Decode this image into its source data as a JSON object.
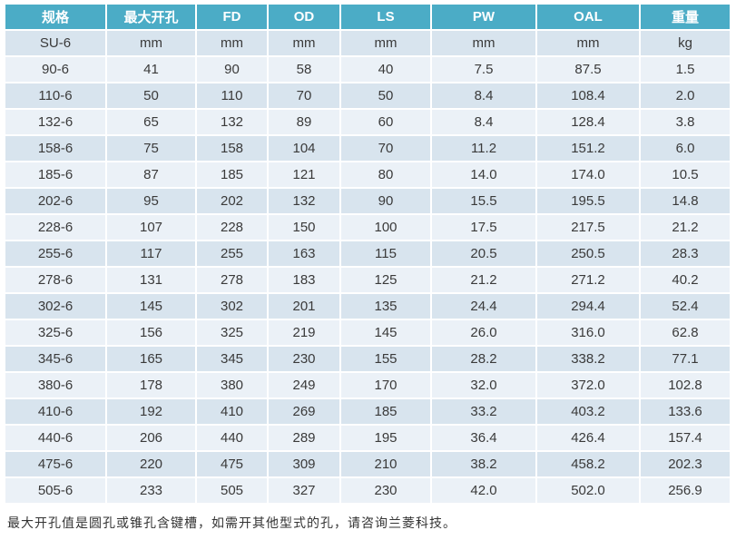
{
  "table": {
    "columns": [
      "规格",
      "最大开孔",
      "FD",
      "OD",
      "LS",
      "PW",
      "OAL",
      "重量"
    ],
    "units_row": [
      "SU-6",
      "mm",
      "mm",
      "mm",
      "mm",
      "mm",
      "mm",
      "kg"
    ],
    "rows": [
      [
        "90-6",
        "41",
        "90",
        "58",
        "40",
        "7.5",
        "87.5",
        "1.5"
      ],
      [
        "110-6",
        "50",
        "110",
        "70",
        "50",
        "8.4",
        "108.4",
        "2.0"
      ],
      [
        "132-6",
        "65",
        "132",
        "89",
        "60",
        "8.4",
        "128.4",
        "3.8"
      ],
      [
        "158-6",
        "75",
        "158",
        "104",
        "70",
        "11.2",
        "151.2",
        "6.0"
      ],
      [
        "185-6",
        "87",
        "185",
        "121",
        "80",
        "14.0",
        "174.0",
        "10.5"
      ],
      [
        "202-6",
        "95",
        "202",
        "132",
        "90",
        "15.5",
        "195.5",
        "14.8"
      ],
      [
        "228-6",
        "107",
        "228",
        "150",
        "100",
        "17.5",
        "217.5",
        "21.2"
      ],
      [
        "255-6",
        "117",
        "255",
        "163",
        "115",
        "20.5",
        "250.5",
        "28.3"
      ],
      [
        "278-6",
        "131",
        "278",
        "183",
        "125",
        "21.2",
        "271.2",
        "40.2"
      ],
      [
        "302-6",
        "145",
        "302",
        "201",
        "135",
        "24.4",
        "294.4",
        "52.4"
      ],
      [
        "325-6",
        "156",
        "325",
        "219",
        "145",
        "26.0",
        "316.0",
        "62.8"
      ],
      [
        "345-6",
        "165",
        "345",
        "230",
        "155",
        "28.2",
        "338.2",
        "77.1"
      ],
      [
        "380-6",
        "178",
        "380",
        "249",
        "170",
        "32.0",
        "372.0",
        "102.8"
      ],
      [
        "410-6",
        "192",
        "410",
        "269",
        "185",
        "33.2",
        "403.2",
        "133.6"
      ],
      [
        "440-6",
        "206",
        "440",
        "289",
        "195",
        "36.4",
        "426.4",
        "157.4"
      ],
      [
        "475-6",
        "220",
        "475",
        "309",
        "210",
        "38.2",
        "458.2",
        "202.3"
      ],
      [
        "505-6",
        "233",
        "505",
        "327",
        "230",
        "42.0",
        "502.0",
        "256.9"
      ]
    ]
  },
  "footer": {
    "note": "最大开孔值是圆孔或锥孔含键槽，如需开其他型式的孔，请咨询兰菱科技。"
  },
  "colors": {
    "header_bg": "#4BACC6",
    "band_dark": "#D8E4EE",
    "band_light": "#EBF1F7",
    "header_text": "#FFFFFF",
    "body_text": "#3A3A3A"
  }
}
